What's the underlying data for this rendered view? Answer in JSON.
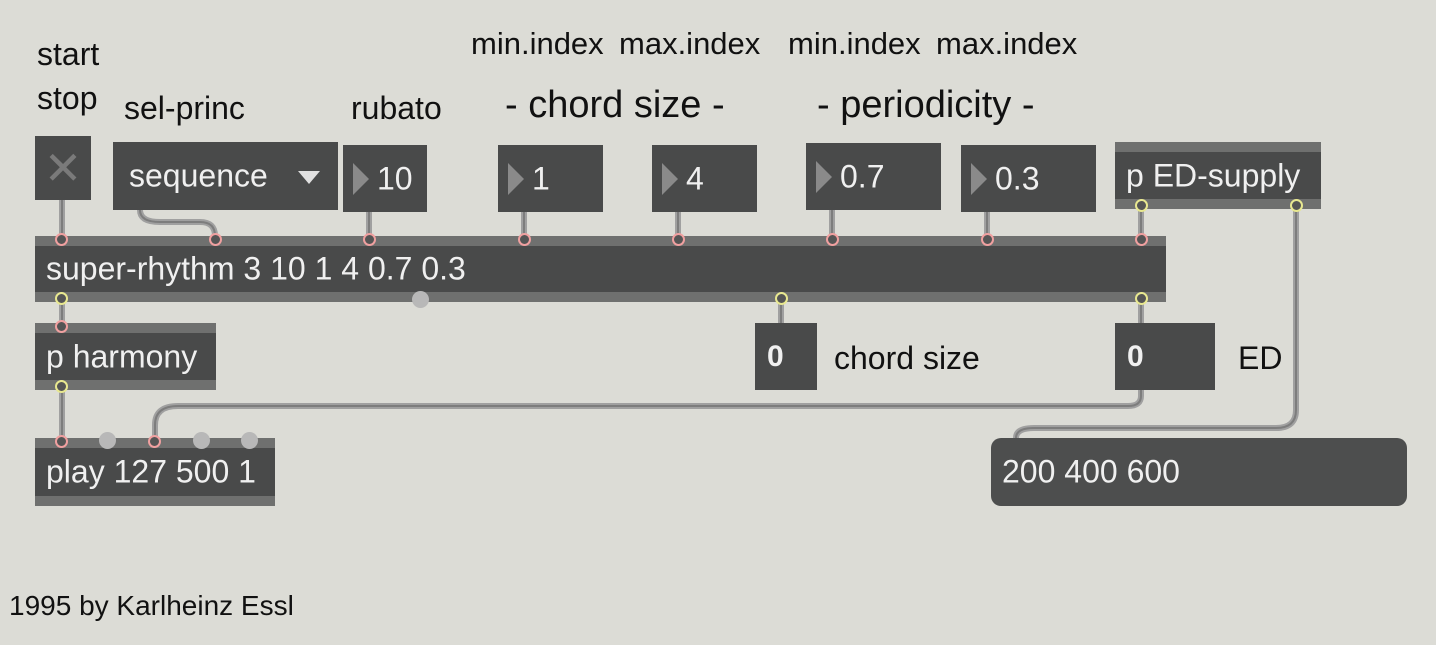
{
  "labels": {
    "start": "start",
    "stop": "stop",
    "sel_princ": "sel-princ",
    "rubato": "rubato",
    "chord_min": "min.index",
    "chord_max": "max.index",
    "period_min": "min.index",
    "period_max": "max.index",
    "chord_size_heading": "- chord size -",
    "periodicity_heading": "- periodicity -",
    "chord_size_out": "chord size",
    "ed_out": "ED",
    "credit": "1995 by Karlheinz Essl"
  },
  "toggle": {
    "state": "off",
    "glyph": "✕"
  },
  "menu": {
    "selected": "sequence"
  },
  "numbers": {
    "rubato": "10",
    "chord_min": "1",
    "chord_max": "4",
    "period_min": "0.7",
    "period_max": "0.3",
    "chord_size_out": "0",
    "ed_out": "0"
  },
  "objects": {
    "ed_supply": "p ED-supply",
    "super_rhythm": "super-rhythm 3 10 1 4 0.7 0.3",
    "harmony": "p harmony",
    "play": "play 127 500 1"
  },
  "message": {
    "text": "200 400 600"
  },
  "colors": {
    "canvas": "#dcdcd6",
    "object": "#494a4a",
    "inlet": "#f0a0a0",
    "outlet": "#e8e890",
    "patch_cord": "#a8a8a8"
  }
}
